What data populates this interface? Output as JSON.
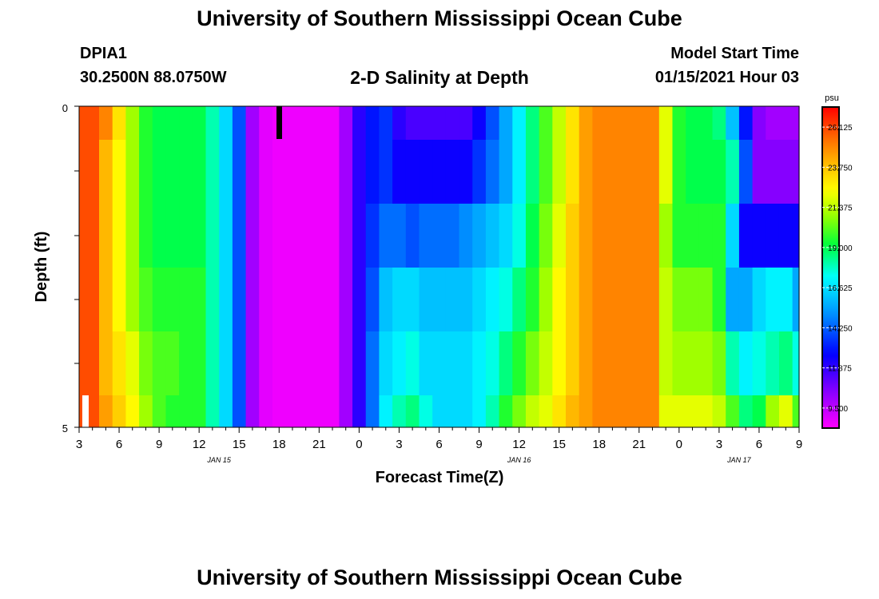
{
  "page": {
    "title_top": "University of Southern Mississippi Ocean Cube",
    "title_bottom": "University of Southern Mississippi Ocean Cube",
    "station": "DPIA1",
    "coords": "30.2500N 88.0750W",
    "chart_title": "2-D Salinity at Depth",
    "start_label": "Model Start Time",
    "start_value": "01/15/2021 Hour 03"
  },
  "chart_data": {
    "type": "heatmap",
    "title": "2-D Salinity at Depth",
    "xlabel": "Forecast Time(Z)",
    "ylabel": "Depth (ft)",
    "x_start_hour": 3,
    "x_step_hours": 1,
    "xlim_hours": [
      0,
      54
    ],
    "ylim": [
      0,
      5
    ],
    "y_ticks": [
      "0",
      "5"
    ],
    "x_tick_labels": [
      "3",
      "6",
      "9",
      "12",
      "15",
      "18",
      "21",
      "0",
      "3",
      "6",
      "9",
      "12",
      "15",
      "18",
      "21",
      "0",
      "3",
      "6",
      "9"
    ],
    "date_labels": [
      {
        "label": "JAN 15",
        "hour": 10.5
      },
      {
        "label": "JAN 16",
        "hour": 33
      },
      {
        "label": "JAN 17",
        "hour": 49.5
      }
    ],
    "colorbar": {
      "unit": "psu",
      "min": 8.3125,
      "max": 27.3125,
      "ticks": [
        "26.125",
        "23.750",
        "21.375",
        "19.000",
        "16.625",
        "14.250",
        "11.875",
        "9.500"
      ]
    },
    "depth_bands": [
      "0.0-0.5",
      "0.5-1.5",
      "1.5-2.5",
      "2.5-3.5",
      "3.5-4.5",
      "4.5-5.0"
    ],
    "salinity": [
      [
        26.0,
        26.0,
        25.0,
        23.0,
        21.0,
        19.5,
        19.0,
        19.0,
        19.0,
        19.0,
        18.0,
        16.5,
        14.0,
        10.0,
        8.8,
        8.6,
        8.6,
        8.6,
        8.6,
        8.6,
        10.0,
        12.0,
        13.0,
        13.5,
        12.0,
        11.5,
        11.5,
        11.5,
        11.5,
        11.5,
        12.5,
        14.0,
        15.5,
        17.0,
        18.5,
        20.0,
        21.5,
        23.0,
        24.5,
        25.0,
        25.0,
        25.0,
        25.0,
        25.0,
        22.0,
        19.5,
        19.0,
        19.0,
        18.5,
        16.0,
        13.0,
        10.5,
        10.0,
        10.0,
        10.0
      ],
      [
        26.0,
        26.0,
        24.0,
        22.5,
        21.0,
        19.5,
        19.0,
        19.0,
        19.0,
        19.0,
        18.0,
        16.5,
        14.0,
        10.0,
        8.8,
        8.6,
        8.6,
        8.6,
        8.6,
        8.6,
        10.0,
        12.0,
        13.0,
        13.5,
        12.5,
        12.5,
        12.5,
        12.5,
        12.5,
        12.5,
        13.5,
        14.5,
        15.5,
        17.0,
        18.5,
        20.0,
        21.5,
        23.0,
        24.5,
        25.0,
        25.0,
        25.0,
        25.0,
        25.0,
        22.0,
        19.5,
        19.0,
        19.0,
        19.0,
        18.0,
        14.0,
        10.5,
        10.5,
        10.5,
        10.5
      ],
      [
        26.0,
        26.0,
        24.0,
        22.5,
        21.0,
        19.5,
        19.0,
        19.0,
        19.0,
        19.0,
        18.0,
        16.5,
        14.0,
        10.0,
        8.8,
        8.6,
        8.6,
        8.6,
        8.6,
        8.6,
        10.0,
        12.0,
        13.5,
        14.5,
        14.5,
        14.0,
        14.5,
        14.5,
        14.5,
        15.0,
        15.5,
        16.0,
        16.5,
        17.5,
        19.0,
        20.5,
        22.0,
        23.5,
        24.5,
        25.0,
        25.0,
        25.0,
        25.0,
        25.0,
        21.0,
        19.5,
        19.5,
        19.5,
        19.5,
        16.5,
        12.5,
        12.5,
        12.5,
        12.5,
        12.5
      ],
      [
        26.0,
        26.0,
        24.0,
        22.5,
        21.0,
        20.0,
        19.5,
        19.5,
        19.5,
        19.5,
        18.0,
        16.5,
        14.0,
        10.0,
        8.8,
        8.6,
        8.6,
        8.6,
        8.6,
        8.6,
        10.0,
        12.0,
        14.0,
        16.0,
        16.5,
        16.5,
        16.0,
        16.0,
        16.0,
        16.0,
        16.5,
        17.0,
        17.5,
        18.5,
        19.5,
        21.0,
        22.5,
        23.5,
        24.5,
        25.0,
        25.0,
        25.0,
        25.0,
        25.0,
        21.5,
        20.5,
        20.5,
        20.5,
        19.5,
        15.5,
        15.5,
        16.5,
        17.0,
        17.0,
        15.5
      ],
      [
        26.0,
        26.0,
        24.0,
        23.0,
        22.0,
        20.5,
        20.0,
        20.0,
        19.5,
        19.5,
        18.0,
        16.5,
        14.0,
        10.0,
        8.8,
        8.6,
        8.6,
        8.6,
        8.6,
        8.6,
        10.0,
        12.0,
        14.5,
        16.5,
        17.0,
        17.5,
        16.5,
        16.5,
        16.5,
        16.5,
        17.0,
        17.5,
        18.5,
        19.5,
        20.5,
        21.5,
        22.5,
        23.5,
        24.5,
        25.0,
        25.0,
        25.0,
        25.0,
        25.0,
        21.5,
        21.0,
        21.0,
        21.0,
        20.5,
        18.0,
        17.0,
        17.5,
        18.0,
        18.5,
        17.5
      ],
      [
        26.0,
        26.0,
        24.5,
        23.5,
        22.5,
        21.0,
        20.0,
        19.5,
        19.5,
        19.5,
        18.0,
        16.5,
        14.0,
        10.0,
        8.8,
        8.6,
        8.6,
        8.6,
        8.6,
        8.6,
        10.0,
        12.0,
        14.5,
        17.0,
        18.0,
        18.5,
        17.5,
        16.5,
        16.5,
        16.5,
        17.0,
        18.0,
        19.5,
        20.5,
        21.5,
        22.0,
        23.0,
        24.0,
        24.5,
        25.0,
        25.0,
        25.0,
        25.0,
        25.0,
        22.0,
        22.0,
        22.0,
        22.0,
        21.5,
        20.0,
        18.5,
        19.0,
        21.0,
        22.0,
        20.0
      ]
    ]
  }
}
